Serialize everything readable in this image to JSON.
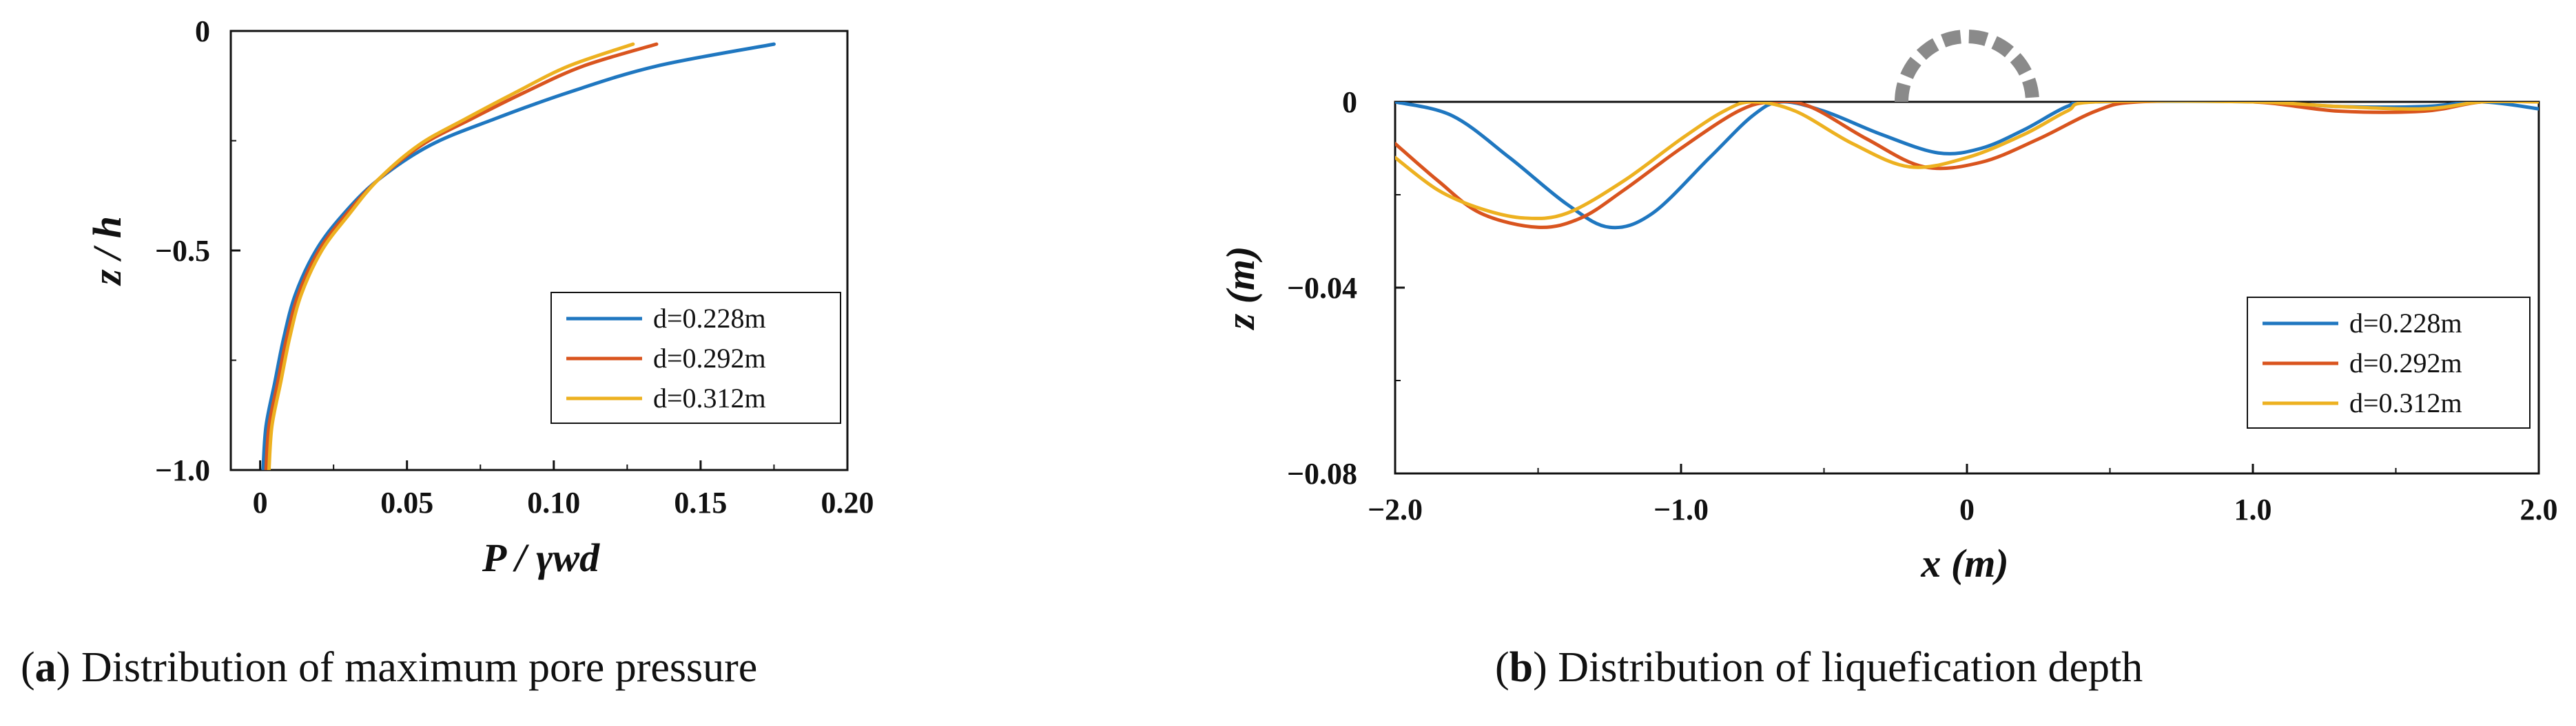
{
  "chart_data": [
    {
      "type": "line",
      "panel_label": "a",
      "caption": "Distribution of maximum pore pressure",
      "xlabel": "P / γwd",
      "ylabel": "z / h",
      "xlim": [
        -0.01,
        0.2
      ],
      "ylim": [
        -1.0,
        0
      ],
      "x_ticks": [
        "0",
        "0.05",
        "0.10",
        "0.15",
        "0.20"
      ],
      "x_tick_values": [
        0,
        0.05,
        0.1,
        0.15,
        0.2
      ],
      "y_ticks": [
        "0",
        "−0.5",
        "−1.0"
      ],
      "y_tick_values": [
        0,
        -0.5,
        -1.0
      ],
      "legend_position": "bottom-right",
      "series": [
        {
          "name": "d=0.228m",
          "color": "#1f77c0",
          "points": [
            [
              0.001,
              -1.0
            ],
            [
              0.002,
              -0.9
            ],
            [
              0.005,
              -0.8
            ],
            [
              0.008,
              -0.7
            ],
            [
              0.012,
              -0.6
            ],
            [
              0.019,
              -0.5
            ],
            [
              0.028,
              -0.42
            ],
            [
              0.04,
              -0.34
            ],
            [
              0.058,
              -0.26
            ],
            [
              0.08,
              -0.2
            ],
            [
              0.105,
              -0.14
            ],
            [
              0.135,
              -0.08
            ],
            [
              0.175,
              -0.03
            ]
          ]
        },
        {
          "name": "d=0.292m",
          "color": "#d9541e",
          "points": [
            [
              0.002,
              -1.0
            ],
            [
              0.003,
              -0.9
            ],
            [
              0.006,
              -0.8
            ],
            [
              0.009,
              -0.7
            ],
            [
              0.013,
              -0.6
            ],
            [
              0.02,
              -0.5
            ],
            [
              0.029,
              -0.42
            ],
            [
              0.04,
              -0.34
            ],
            [
              0.055,
              -0.26
            ],
            [
              0.072,
              -0.2
            ],
            [
              0.09,
              -0.14
            ],
            [
              0.11,
              -0.08
            ],
            [
              0.135,
              -0.03
            ]
          ]
        },
        {
          "name": "d=0.312m",
          "color": "#edb120",
          "points": [
            [
              0.003,
              -1.0
            ],
            [
              0.004,
              -0.9
            ],
            [
              0.007,
              -0.8
            ],
            [
              0.01,
              -0.7
            ],
            [
              0.014,
              -0.6
            ],
            [
              0.021,
              -0.5
            ],
            [
              0.03,
              -0.42
            ],
            [
              0.04,
              -0.34
            ],
            [
              0.054,
              -0.26
            ],
            [
              0.07,
              -0.2
            ],
            [
              0.087,
              -0.14
            ],
            [
              0.105,
              -0.08
            ],
            [
              0.127,
              -0.03
            ]
          ]
        }
      ]
    },
    {
      "type": "line",
      "panel_label": "b",
      "caption": "Distribution of liquefication depth",
      "xlabel": "x (m)",
      "ylabel": "z (m)",
      "xlim": [
        -2.0,
        2.0
      ],
      "ylim": [
        -0.08,
        0
      ],
      "x_ticks": [
        "−2.0",
        "−1.0",
        "0",
        "1.0",
        "2.0"
      ],
      "x_tick_values": [
        -2.0,
        -1.0,
        0,
        1.0,
        2.0
      ],
      "y_ticks": [
        "0",
        "−0.04",
        "−0.08"
      ],
      "y_tick_values": [
        0,
        -0.04,
        -0.08
      ],
      "legend_position": "bottom-right",
      "pipe_color": "#8a8a8a",
      "series": [
        {
          "name": "d=0.228m",
          "color": "#1f77c0",
          "points": [
            [
              -2.0,
              0
            ],
            [
              -1.8,
              -0.003
            ],
            [
              -1.6,
              -0.012
            ],
            [
              -1.4,
              -0.022
            ],
            [
              -1.25,
              -0.027
            ],
            [
              -1.1,
              -0.024
            ],
            [
              -0.9,
              -0.012
            ],
            [
              -0.75,
              -0.003
            ],
            [
              -0.65,
              0
            ],
            [
              -0.5,
              -0.002
            ],
            [
              -0.3,
              -0.007
            ],
            [
              -0.1,
              -0.011
            ],
            [
              0.05,
              -0.01
            ],
            [
              0.2,
              -0.006
            ],
            [
              0.35,
              -0.001
            ],
            [
              0.45,
              0
            ],
            [
              1.0,
              0
            ],
            [
              1.3,
              -0.001
            ],
            [
              1.6,
              -0.001
            ],
            [
              1.8,
              0
            ],
            [
              2.0,
              -0.0015
            ]
          ]
        },
        {
          "name": "d=0.292m",
          "color": "#d9541e",
          "points": [
            [
              -2.0,
              -0.009
            ],
            [
              -1.85,
              -0.017
            ],
            [
              -1.7,
              -0.024
            ],
            [
              -1.5,
              -0.027
            ],
            [
              -1.35,
              -0.025
            ],
            [
              -1.2,
              -0.019
            ],
            [
              -1.0,
              -0.01
            ],
            [
              -0.8,
              -0.002
            ],
            [
              -0.68,
              0
            ],
            [
              -0.55,
              -0.001
            ],
            [
              -0.35,
              -0.008
            ],
            [
              -0.15,
              -0.014
            ],
            [
              0.05,
              -0.013
            ],
            [
              0.25,
              -0.008
            ],
            [
              0.45,
              -0.002
            ],
            [
              0.6,
              0
            ],
            [
              1.0,
              0
            ],
            [
              1.3,
              -0.002
            ],
            [
              1.6,
              -0.002
            ],
            [
              1.8,
              0
            ],
            [
              2.0,
              0
            ]
          ]
        },
        {
          "name": "d=0.312m",
          "color": "#edb120",
          "points": [
            [
              -2.0,
              -0.012
            ],
            [
              -1.85,
              -0.019
            ],
            [
              -1.7,
              -0.023
            ],
            [
              -1.55,
              -0.025
            ],
            [
              -1.4,
              -0.024
            ],
            [
              -1.2,
              -0.017
            ],
            [
              -1.0,
              -0.008
            ],
            [
              -0.85,
              -0.002
            ],
            [
              -0.75,
              0
            ],
            [
              -0.6,
              -0.002
            ],
            [
              -0.4,
              -0.009
            ],
            [
              -0.2,
              -0.014
            ],
            [
              0.0,
              -0.012
            ],
            [
              0.2,
              -0.007
            ],
            [
              0.35,
              -0.002
            ],
            [
              0.45,
              0
            ],
            [
              1.0,
              0
            ],
            [
              1.3,
              -0.001
            ],
            [
              1.6,
              -0.0015
            ],
            [
              1.8,
              0
            ],
            [
              2.0,
              0
            ]
          ]
        }
      ]
    }
  ]
}
